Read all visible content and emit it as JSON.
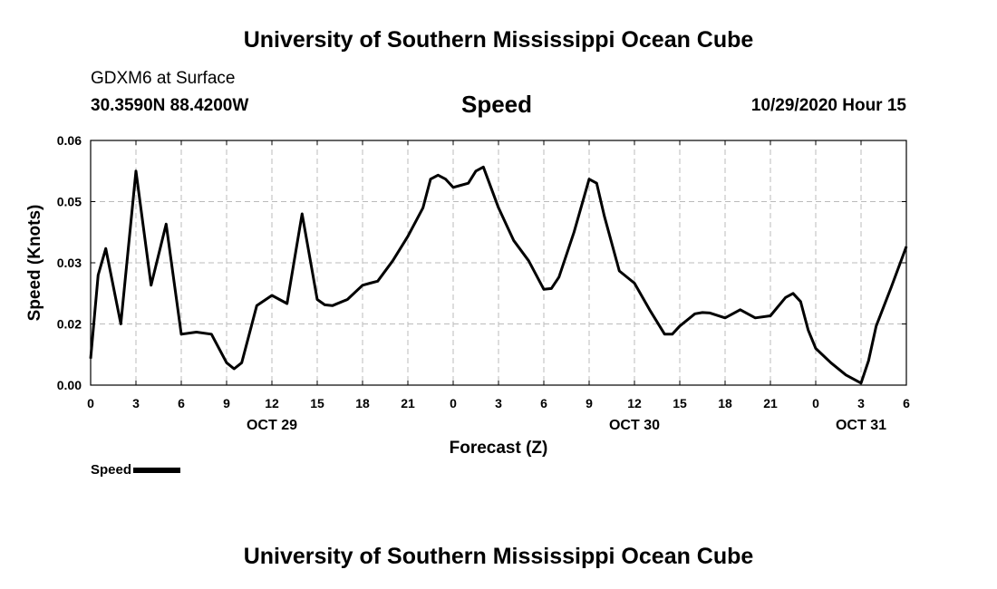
{
  "header": {
    "title": "University of Southern Mississippi Ocean Cube",
    "location_line1": "GDXM6 at Surface",
    "location_line2": "30.3590N 88.4200W",
    "chart_title": "Speed",
    "valid_time": "10/29/2020 Hour 15"
  },
  "footer": {
    "title": "University of Southern Mississippi Ocean Cube"
  },
  "legend": {
    "label": "Speed",
    "color": "#000000"
  },
  "chart_data": {
    "type": "line",
    "title": "Speed",
    "xlabel": "Forecast (Z)",
    "ylabel": "Speed (Knots)",
    "x_unit": "forecast hour",
    "xlim": [
      0,
      54
    ],
    "ylim": [
      0,
      0.06
    ],
    "y_ticks": [
      0.0,
      0.015,
      0.03,
      0.045,
      0.06
    ],
    "y_tick_labels": [
      "0.00",
      "0.02",
      "0.03",
      "0.05",
      "0.06"
    ],
    "x_ticks": [
      0,
      3,
      6,
      9,
      12,
      15,
      18,
      21,
      24,
      27,
      30,
      33,
      36,
      39,
      42,
      45,
      48,
      51,
      54
    ],
    "x_tick_labels": [
      "0",
      "3",
      "6",
      "9",
      "12",
      "15",
      "18",
      "21",
      "0",
      "3",
      "6",
      "9",
      "12",
      "15",
      "18",
      "21",
      "0",
      "3",
      "6"
    ],
    "date_labels": [
      {
        "x": 12,
        "text": "OCT 29"
      },
      {
        "x": 36,
        "text": "OCT 30"
      },
      {
        "x": 51,
        "text": "OCT 31"
      }
    ],
    "grid": true,
    "legend_position": "bottom-left",
    "series": [
      {
        "name": "Speed",
        "color": "#000000",
        "x": [
          0,
          0.5,
          1,
          2,
          3,
          4,
          5,
          6,
          7,
          8,
          9,
          9.5,
          10,
          11,
          12,
          13,
          14,
          15,
          15.5,
          16,
          17,
          18,
          18.5,
          19,
          20,
          21,
          22,
          22.5,
          23,
          23.5,
          24,
          24.5,
          25,
          25.5,
          26,
          27,
          28,
          29,
          30,
          30.5,
          31,
          32,
          33,
          33.5,
          34,
          35,
          36,
          37,
          38,
          38.5,
          39,
          40,
          40.5,
          41,
          42,
          43,
          44,
          45,
          46,
          46.5,
          47,
          47.5,
          48,
          49,
          50,
          51,
          51.5,
          52,
          53,
          54
        ],
        "y": [
          0.0065,
          0.027,
          0.0335,
          0.015,
          0.0525,
          0.0245,
          0.0395,
          0.0125,
          0.013,
          0.0125,
          0.0055,
          0.004,
          0.0055,
          0.0195,
          0.022,
          0.02,
          0.042,
          0.021,
          0.0197,
          0.0195,
          0.021,
          0.0245,
          0.025,
          0.0255,
          0.0305,
          0.0365,
          0.0435,
          0.0505,
          0.0515,
          0.0505,
          0.0485,
          0.049,
          0.0495,
          0.0525,
          0.0535,
          0.0435,
          0.0355,
          0.0305,
          0.0235,
          0.0237,
          0.0265,
          0.0375,
          0.0505,
          0.0495,
          0.0415,
          0.028,
          0.025,
          0.0185,
          0.0125,
          0.0125,
          0.0145,
          0.0175,
          0.0178,
          0.0177,
          0.0165,
          0.0185,
          0.0165,
          0.017,
          0.0215,
          0.0225,
          0.0205,
          0.0135,
          0.009,
          0.0055,
          0.0025,
          0.0005,
          0.006,
          0.0145,
          0.024,
          0.034
        ]
      }
    ]
  }
}
